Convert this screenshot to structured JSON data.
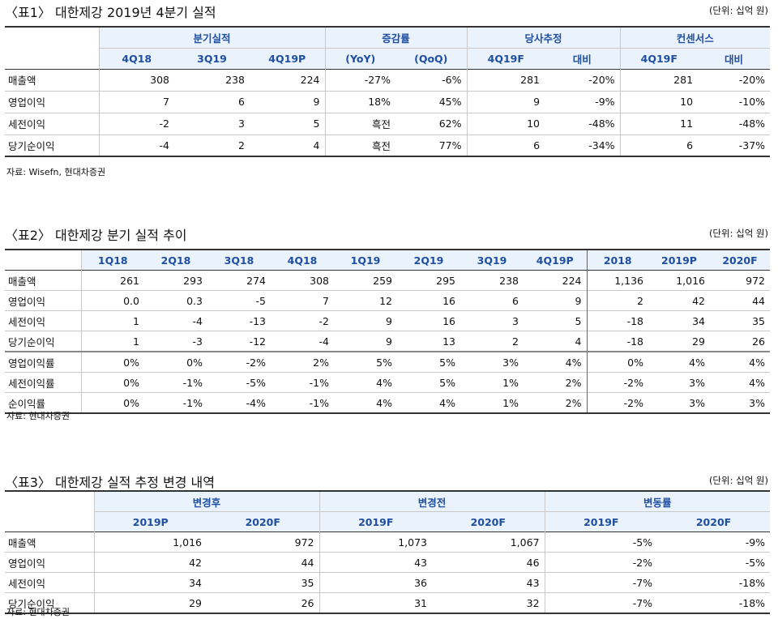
{
  "t1": {
    "title": "〈표1〉 대한제강 2019년 4분기 실적",
    "unit": "(단위: 십억 원)",
    "groups": [
      "분기실적",
      "증감률",
      "당사추정",
      "컨센서스"
    ],
    "cols": [
      "4Q18",
      "3Q19",
      "4Q19P",
      "(YoY)",
      "(QoQ)",
      "4Q19F",
      "대비",
      "4Q19F",
      "대비"
    ],
    "rows": [
      {
        "label": "매출액",
        "v": [
          "308",
          "238",
          "224",
          "-27%",
          "-6%",
          "281",
          "-20%",
          "281",
          "-20%"
        ]
      },
      {
        "label": "영업이익",
        "v": [
          "7",
          "6",
          "9",
          "18%",
          "45%",
          "9",
          "-9%",
          "10",
          "-10%"
        ]
      },
      {
        "label": "세전이익",
        "v": [
          "-2",
          "3",
          "5",
          "흑전",
          "62%",
          "10",
          "-48%",
          "11",
          "-48%"
        ]
      },
      {
        "label": "당기순이익",
        "v": [
          "-4",
          "2",
          "4",
          "흑전",
          "77%",
          "6",
          "-34%",
          "6",
          "-37%"
        ]
      }
    ],
    "source": "자료: Wisefn, 현대차증권"
  },
  "t2": {
    "title": "〈표2〉 대한제강 분기 실적 추이",
    "unit": "(단위: 십억 원)",
    "cols": [
      "1Q18",
      "2Q18",
      "3Q18",
      "4Q18",
      "1Q19",
      "2Q19",
      "3Q19",
      "4Q19P",
      "2018",
      "2019P",
      "2020F"
    ],
    "rows": [
      {
        "label": "매출액",
        "v": [
          "261",
          "293",
          "274",
          "308",
          "259",
          "295",
          "238",
          "224",
          "1,136",
          "1,016",
          "972"
        ]
      },
      {
        "label": "영업이익",
        "v": [
          "0.0",
          "0.3",
          "-5",
          "7",
          "12",
          "16",
          "6",
          "9",
          "2",
          "42",
          "44"
        ]
      },
      {
        "label": "세전이익",
        "v": [
          "1",
          "-4",
          "-13",
          "-2",
          "9",
          "16",
          "3",
          "5",
          "-18",
          "34",
          "35"
        ]
      },
      {
        "label": "당기순이익",
        "v": [
          "1",
          "-3",
          "-12",
          "-4",
          "9",
          "13",
          "2",
          "4",
          "-18",
          "29",
          "26"
        ]
      },
      {
        "label": "영업이익률",
        "v": [
          "0%",
          "0%",
          "-2%",
          "2%",
          "5%",
          "5%",
          "3%",
          "4%",
          "0%",
          "4%",
          "4%"
        ]
      },
      {
        "label": "세전이익률",
        "v": [
          "0%",
          "-1%",
          "-5%",
          "-1%",
          "4%",
          "5%",
          "1%",
          "2%",
          "-2%",
          "3%",
          "4%"
        ]
      },
      {
        "label": "순이익률",
        "v": [
          "0%",
          "-1%",
          "-4%",
          "-1%",
          "4%",
          "4%",
          "1%",
          "2%",
          "-2%",
          "3%",
          "3%"
        ]
      }
    ],
    "source": "자료: 현대차증권"
  },
  "t3": {
    "title": "〈표3〉 대한제강 실적 추정 변경 내역",
    "unit": "(단위: 십억 원)",
    "groups": [
      "변경후",
      "변경전",
      "변동률"
    ],
    "cols": [
      "2019P",
      "2020F",
      "2019F",
      "2020F",
      "2019F",
      "2020F"
    ],
    "rows": [
      {
        "label": "매출액",
        "v": [
          "1,016",
          "972",
          "1,073",
          "1,067",
          "-5%",
          "-9%"
        ]
      },
      {
        "label": "영업이익",
        "v": [
          "42",
          "44",
          "43",
          "46",
          "-2%",
          "-5%"
        ]
      },
      {
        "label": "세전이익",
        "v": [
          "34",
          "35",
          "36",
          "43",
          "-7%",
          "-18%"
        ]
      },
      {
        "label": "당기순이익",
        "v": [
          "29",
          "26",
          "31",
          "32",
          "-7%",
          "-18%"
        ]
      }
    ],
    "source": "자료: 현대차증권"
  }
}
